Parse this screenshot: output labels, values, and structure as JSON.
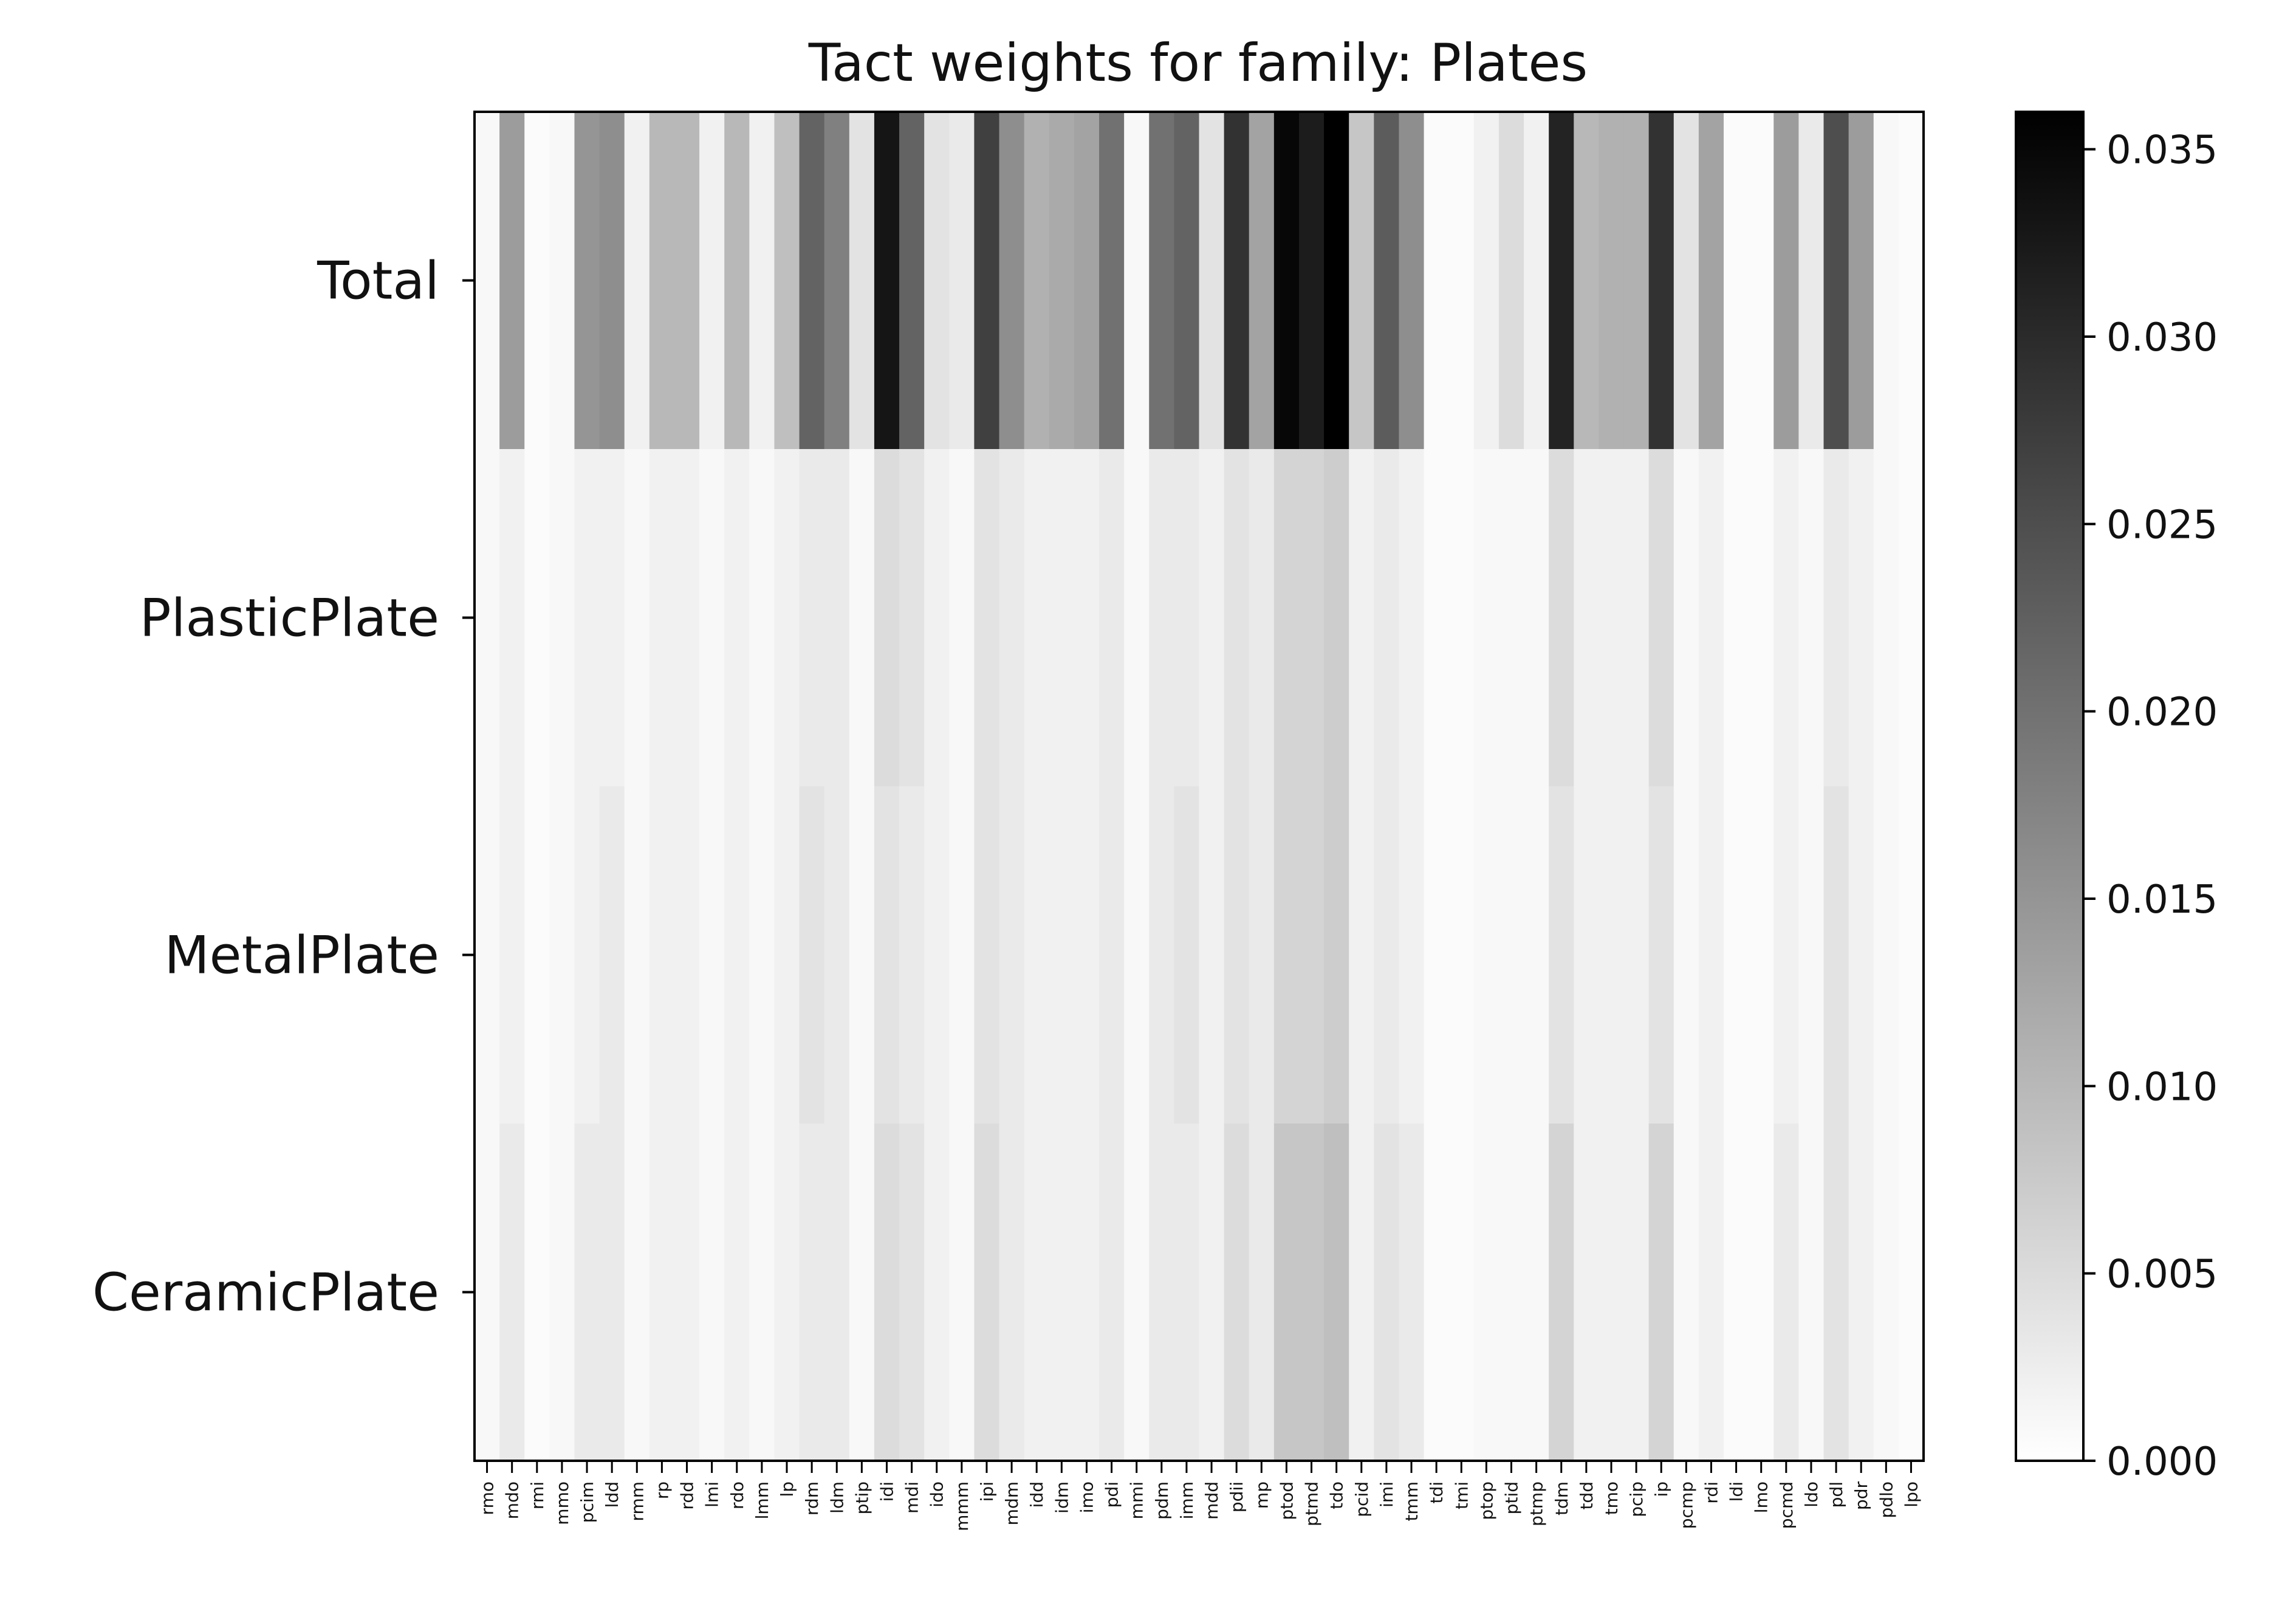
{
  "chart_data": {
    "type": "heatmap",
    "title": "Tact weights for family: Plates",
    "colormap": "Greys",
    "xlabel": "",
    "ylabel": "",
    "rows": [
      "Total",
      "PlasticPlate",
      "MetalPlate",
      "CeramicPlate"
    ],
    "columns": [
      "rmo",
      "mdo",
      "rmi",
      "mmo",
      "pcim",
      "ldd",
      "rmm",
      "rp",
      "rdd",
      "lmi",
      "rdo",
      "lmm",
      "lp",
      "rdm",
      "ldm",
      "ptip",
      "idi",
      "mdi",
      "ido",
      "mmm",
      "ipi",
      "mdm",
      "idd",
      "idm",
      "imo",
      "pdi",
      "mmi",
      "pdm",
      "imm",
      "mdd",
      "pdii",
      "mp",
      "ptod",
      "ptmd",
      "tdo",
      "pcid",
      "imi",
      "tmm",
      "tdi",
      "tmi",
      "ptop",
      "ptid",
      "ptmp",
      "tdm",
      "tdd",
      "tmo",
      "pcip",
      "ip",
      "pcmp",
      "rdi",
      "ldi",
      "lmo",
      "pcmd",
      "ldo",
      "pdl",
      "pdr",
      "pdlo",
      "lpo"
    ],
    "values": [
      [
        0.001,
        0.014,
        0.0005,
        0.001,
        0.015,
        0.016,
        0.002,
        0.01,
        0.01,
        0.002,
        0.01,
        0.002,
        0.009,
        0.022,
        0.018,
        0.004,
        0.033,
        0.022,
        0.004,
        0.003,
        0.027,
        0.016,
        0.011,
        0.012,
        0.013,
        0.02,
        0.001,
        0.02,
        0.022,
        0.004,
        0.029,
        0.013,
        0.035,
        0.032,
        0.036,
        0.008,
        0.023,
        0.016,
        0.0005,
        0.0005,
        0.002,
        0.005,
        0.002,
        0.031,
        0.01,
        0.011,
        0.011,
        0.029,
        0.004,
        0.013,
        0.0005,
        0.0005,
        0.014,
        0.003,
        0.025,
        0.014,
        0.001,
        0.0005
      ],
      [
        0.001,
        0.002,
        0.0005,
        0.001,
        0.002,
        0.002,
        0.001,
        0.002,
        0.002,
        0.001,
        0.002,
        0.001,
        0.002,
        0.003,
        0.003,
        0.001,
        0.005,
        0.004,
        0.002,
        0.001,
        0.004,
        0.003,
        0.002,
        0.002,
        0.002,
        0.003,
        0.001,
        0.003,
        0.003,
        0.002,
        0.004,
        0.003,
        0.006,
        0.006,
        0.007,
        0.002,
        0.003,
        0.002,
        0.0005,
        0.0005,
        0.001,
        0.001,
        0.001,
        0.005,
        0.002,
        0.002,
        0.002,
        0.005,
        0.001,
        0.002,
        0.0005,
        0.0005,
        0.002,
        0.001,
        0.003,
        0.002,
        0.001,
        0.0005
      ],
      [
        0.001,
        0.002,
        0.0005,
        0.001,
        0.002,
        0.003,
        0.001,
        0.002,
        0.002,
        0.001,
        0.002,
        0.001,
        0.002,
        0.004,
        0.003,
        0.001,
        0.004,
        0.003,
        0.002,
        0.001,
        0.004,
        0.003,
        0.002,
        0.002,
        0.002,
        0.003,
        0.001,
        0.003,
        0.004,
        0.002,
        0.004,
        0.003,
        0.006,
        0.006,
        0.007,
        0.002,
        0.003,
        0.002,
        0.0005,
        0.0005,
        0.001,
        0.001,
        0.001,
        0.004,
        0.002,
        0.002,
        0.002,
        0.004,
        0.001,
        0.002,
        0.0005,
        0.0005,
        0.002,
        0.001,
        0.004,
        0.002,
        0.001,
        0.0005
      ],
      [
        0.001,
        0.003,
        0.0005,
        0.001,
        0.003,
        0.003,
        0.001,
        0.002,
        0.002,
        0.001,
        0.002,
        0.001,
        0.002,
        0.003,
        0.003,
        0.001,
        0.005,
        0.004,
        0.002,
        0.001,
        0.005,
        0.003,
        0.002,
        0.002,
        0.002,
        0.003,
        0.001,
        0.003,
        0.003,
        0.002,
        0.005,
        0.003,
        0.008,
        0.008,
        0.009,
        0.002,
        0.004,
        0.003,
        0.0005,
        0.0005,
        0.001,
        0.001,
        0.001,
        0.006,
        0.002,
        0.002,
        0.002,
        0.006,
        0.001,
        0.002,
        0.0005,
        0.0005,
        0.003,
        0.001,
        0.004,
        0.002,
        0.001,
        0.0005
      ]
    ],
    "colorbar": {
      "min": 0.0,
      "max": 0.036,
      "ticks": [
        "0.000",
        "0.005",
        "0.010",
        "0.015",
        "0.020",
        "0.025",
        "0.030",
        "0.035"
      ]
    }
  }
}
